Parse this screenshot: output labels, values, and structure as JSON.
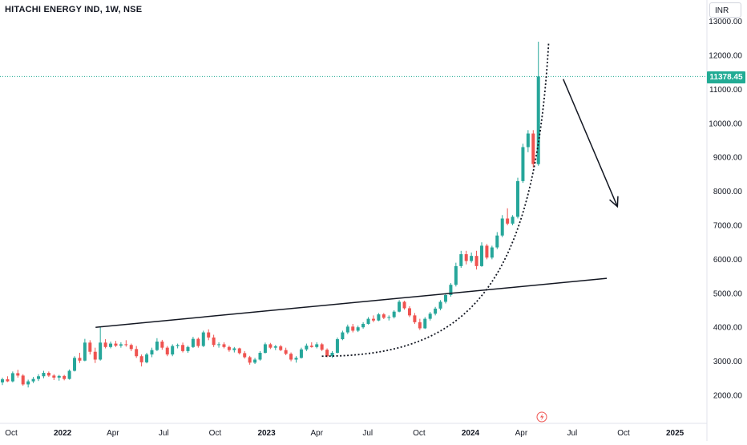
{
  "header": {
    "title": "HITACHI ENERGY IND, 1W, NSE",
    "currency": "INR"
  },
  "price_tag": "11378.45",
  "colors": {
    "up": "#26a69a",
    "down": "#ef5350",
    "line": "#131722",
    "price_line": "#22ab94",
    "tag_bg": "#22ab94"
  },
  "chart_data": {
    "type": "candlestick",
    "title": "HITACHI ENERGY IND, 1W, NSE",
    "y_ticks": [
      "13000.00",
      "12000.00",
      "11000.00",
      "10000.00",
      "9000.00",
      "8000.00",
      "7000.00",
      "6000.00",
      "5000.00",
      "4000.00",
      "3000.00",
      "2000.00"
    ],
    "ylim": [
      1600,
      13200
    ],
    "x_ticks": [
      {
        "label": "Oct",
        "date": "2021-10-01",
        "bold": false
      },
      {
        "label": "2022",
        "date": "2022-01-01",
        "bold": true
      },
      {
        "label": "Apr",
        "date": "2022-04-01",
        "bold": false
      },
      {
        "label": "Jul",
        "date": "2022-07-01",
        "bold": false
      },
      {
        "label": "Oct",
        "date": "2022-10-01",
        "bold": false
      },
      {
        "label": "2023",
        "date": "2023-01-01",
        "bold": true
      },
      {
        "label": "Apr",
        "date": "2023-04-01",
        "bold": false
      },
      {
        "label": "Jul",
        "date": "2023-07-01",
        "bold": false
      },
      {
        "label": "Oct",
        "date": "2023-10-01",
        "bold": false
      },
      {
        "label": "2024",
        "date": "2024-01-01",
        "bold": true
      },
      {
        "label": "Apr",
        "date": "2024-04-01",
        "bold": false
      },
      {
        "label": "Jul",
        "date": "2024-07-01",
        "bold": false
      },
      {
        "label": "Oct",
        "date": "2024-10-01",
        "bold": false
      },
      {
        "label": "2025",
        "date": "2025-01-01",
        "bold": true
      }
    ],
    "last_price": 11378.45,
    "candle_key": [
      "open",
      "high",
      "low",
      "close"
    ],
    "candles": [
      [
        2380,
        2520,
        2300,
        2470
      ],
      [
        2470,
        2560,
        2390,
        2410
      ],
      [
        2410,
        2700,
        2380,
        2650
      ],
      [
        2650,
        2750,
        2520,
        2580
      ],
      [
        2580,
        2620,
        2280,
        2320
      ],
      [
        2320,
        2460,
        2230,
        2410
      ],
      [
        2410,
        2540,
        2360,
        2480
      ],
      [
        2480,
        2620,
        2420,
        2560
      ],
      [
        2560,
        2720,
        2500,
        2660
      ],
      [
        2660,
        2700,
        2540,
        2580
      ],
      [
        2580,
        2620,
        2450,
        2520
      ],
      [
        2520,
        2600,
        2430,
        2570
      ],
      [
        2570,
        2600,
        2440,
        2480
      ],
      [
        2480,
        2760,
        2460,
        2720
      ],
      [
        2720,
        3150,
        2700,
        3100
      ],
      [
        3100,
        3250,
        2950,
        3020
      ],
      [
        3020,
        3660,
        3000,
        3550
      ],
      [
        3550,
        3620,
        3200,
        3280
      ],
      [
        3280,
        3400,
        2950,
        3050
      ],
      [
        3050,
        4000,
        3020,
        3550
      ],
      [
        3550,
        3650,
        3380,
        3420
      ],
      [
        3420,
        3580,
        3380,
        3520
      ],
      [
        3520,
        3600,
        3420,
        3460
      ],
      [
        3460,
        3560,
        3400,
        3500
      ],
      [
        3500,
        3620,
        3430,
        3480
      ],
      [
        3480,
        3520,
        3300,
        3360
      ],
      [
        3360,
        3450,
        3100,
        3150
      ],
      [
        3150,
        3200,
        2850,
        2970
      ],
      [
        2970,
        3250,
        2940,
        3200
      ],
      [
        3200,
        3400,
        3120,
        3330
      ],
      [
        3330,
        3680,
        3300,
        3580
      ],
      [
        3580,
        3630,
        3340,
        3400
      ],
      [
        3400,
        3450,
        3150,
        3200
      ],
      [
        3200,
        3500,
        3150,
        3450
      ],
      [
        3450,
        3520,
        3380,
        3480
      ],
      [
        3480,
        3550,
        3260,
        3300
      ],
      [
        3300,
        3460,
        3250,
        3420
      ],
      [
        3420,
        3720,
        3390,
        3660
      ],
      [
        3660,
        3700,
        3400,
        3450
      ],
      [
        3450,
        3900,
        3420,
        3850
      ],
      [
        3850,
        3940,
        3620,
        3700
      ],
      [
        3700,
        3780,
        3420,
        3480
      ],
      [
        3480,
        3560,
        3400,
        3500
      ],
      [
        3500,
        3560,
        3380,
        3420
      ],
      [
        3420,
        3460,
        3280,
        3330
      ],
      [
        3330,
        3420,
        3260,
        3380
      ],
      [
        3380,
        3400,
        3200,
        3240
      ],
      [
        3240,
        3300,
        3080,
        3120
      ],
      [
        3120,
        3160,
        2900,
        2960
      ],
      [
        2960,
        3100,
        2920,
        3050
      ],
      [
        3050,
        3300,
        3020,
        3250
      ],
      [
        3250,
        3550,
        3230,
        3500
      ],
      [
        3500,
        3540,
        3360,
        3400
      ],
      [
        3400,
        3480,
        3330,
        3440
      ],
      [
        3440,
        3480,
        3300,
        3330
      ],
      [
        3330,
        3400,
        3180,
        3220
      ],
      [
        3220,
        3260,
        3000,
        3050
      ],
      [
        3050,
        3150,
        2960,
        3100
      ],
      [
        3100,
        3400,
        3080,
        3350
      ],
      [
        3350,
        3520,
        3300,
        3460
      ],
      [
        3460,
        3560,
        3400,
        3420
      ],
      [
        3420,
        3560,
        3380,
        3500
      ],
      [
        3500,
        3540,
        3300,
        3340
      ],
      [
        3340,
        3380,
        3120,
        3150
      ],
      [
        3150,
        3300,
        3100,
        3250
      ],
      [
        3250,
        3700,
        3230,
        3650
      ],
      [
        3650,
        3900,
        3620,
        3850
      ],
      [
        3850,
        4080,
        3800,
        4020
      ],
      [
        4020,
        4100,
        3850,
        3900
      ],
      [
        3900,
        4050,
        3860,
        4000
      ],
      [
        4000,
        4150,
        3960,
        4100
      ],
      [
        4100,
        4300,
        4080,
        4250
      ],
      [
        4250,
        4350,
        4150,
        4200
      ],
      [
        4200,
        4420,
        4180,
        4380
      ],
      [
        4380,
        4420,
        4240,
        4280
      ],
      [
        4280,
        4350,
        4200,
        4300
      ],
      [
        4300,
        4500,
        4260,
        4460
      ],
      [
        4460,
        4800,
        4440,
        4750
      ],
      [
        4750,
        4780,
        4520,
        4560
      ],
      [
        4560,
        4620,
        4300,
        4350
      ],
      [
        4350,
        4420,
        4100,
        4150
      ],
      [
        4150,
        4250,
        3920,
        3970
      ],
      [
        3970,
        4300,
        3950,
        4250
      ],
      [
        4250,
        4450,
        4200,
        4400
      ],
      [
        4400,
        4600,
        4350,
        4550
      ],
      [
        4550,
        4800,
        4500,
        4750
      ],
      [
        4750,
        5000,
        4700,
        4950
      ],
      [
        4950,
        5300,
        4900,
        5250
      ],
      [
        5250,
        5900,
        5200,
        5800
      ],
      [
        5800,
        6250,
        5750,
        6150
      ],
      [
        6150,
        6250,
        5850,
        5950
      ],
      [
        5950,
        6200,
        5900,
        6100
      ],
      [
        6100,
        6250,
        5700,
        5800
      ],
      [
        5800,
        6500,
        5780,
        6400
      ],
      [
        6400,
        6450,
        6000,
        6050
      ],
      [
        6050,
        6400,
        6000,
        6350
      ],
      [
        6350,
        6800,
        6300,
        6700
      ],
      [
        6700,
        7300,
        6650,
        7200
      ],
      [
        7200,
        7500,
        7000,
        7050
      ],
      [
        7050,
        7300,
        7000,
        7250
      ],
      [
        7250,
        8400,
        7200,
        8300
      ],
      [
        8300,
        9400,
        8250,
        9300
      ],
      [
        9300,
        9800,
        9150,
        9700
      ],
      [
        9700,
        9800,
        8700,
        8800
      ],
      [
        8800,
        12400,
        8750,
        11378
      ]
    ],
    "annotations": {
      "trend_line": {
        "from": {
          "date": "2022-03-01",
          "price": 4000
        },
        "to": {
          "date": "2024-09-01",
          "price": 5440
        }
      },
      "parabolic_curve": {
        "from": {
          "date": "2023-04-10",
          "price": 3150
        },
        "to": {
          "date": "2024-05-20",
          "price": 12400
        }
      },
      "arrow": {
        "from": {
          "date": "2024-06-15",
          "price": 11300
        },
        "to": {
          "date": "2024-09-20",
          "price": 7550
        }
      }
    }
  }
}
